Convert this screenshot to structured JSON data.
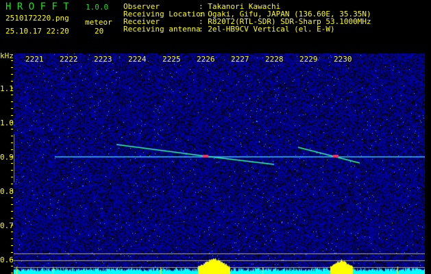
{
  "header": {
    "app_name": "H R O F F T",
    "version": "1.0.0",
    "filename": "2510172220.png",
    "datetime": "25.10.17 22:20",
    "meteor_label": "meteor",
    "meteor_count": "20",
    "info": [
      {
        "label": "Observer",
        "value": ": Takanori Kawachi"
      },
      {
        "label": "Receiving Location",
        "value": ": Ogaki, Gifu, JAPAN (136.60E, 35.35N)"
      },
      {
        "label": "Receiver",
        "value": ": R820T2(RTL-SDR) SDR-Sharp 53.1000MHz"
      },
      {
        "label": "Receiving antenna",
        "value": ": 2el-HB9CV Vertical (el. E-W)"
      }
    ]
  },
  "axes": {
    "y_unit": "kHz",
    "x_ticks": [
      "2221",
      "2222",
      "2223",
      "2224",
      "2225",
      "2226",
      "2227",
      "2228",
      "2229",
      "2230"
    ],
    "y_ticks": [
      "1.1",
      "1.0",
      "0.9",
      "0.8",
      "0.7",
      "0.6"
    ]
  },
  "colors": {
    "text": "#ffff00",
    "title": "#22dd22",
    "background": "#000000",
    "noise": "#0000c0",
    "histogram": "#00ffff",
    "peak": "#ffff00"
  }
}
